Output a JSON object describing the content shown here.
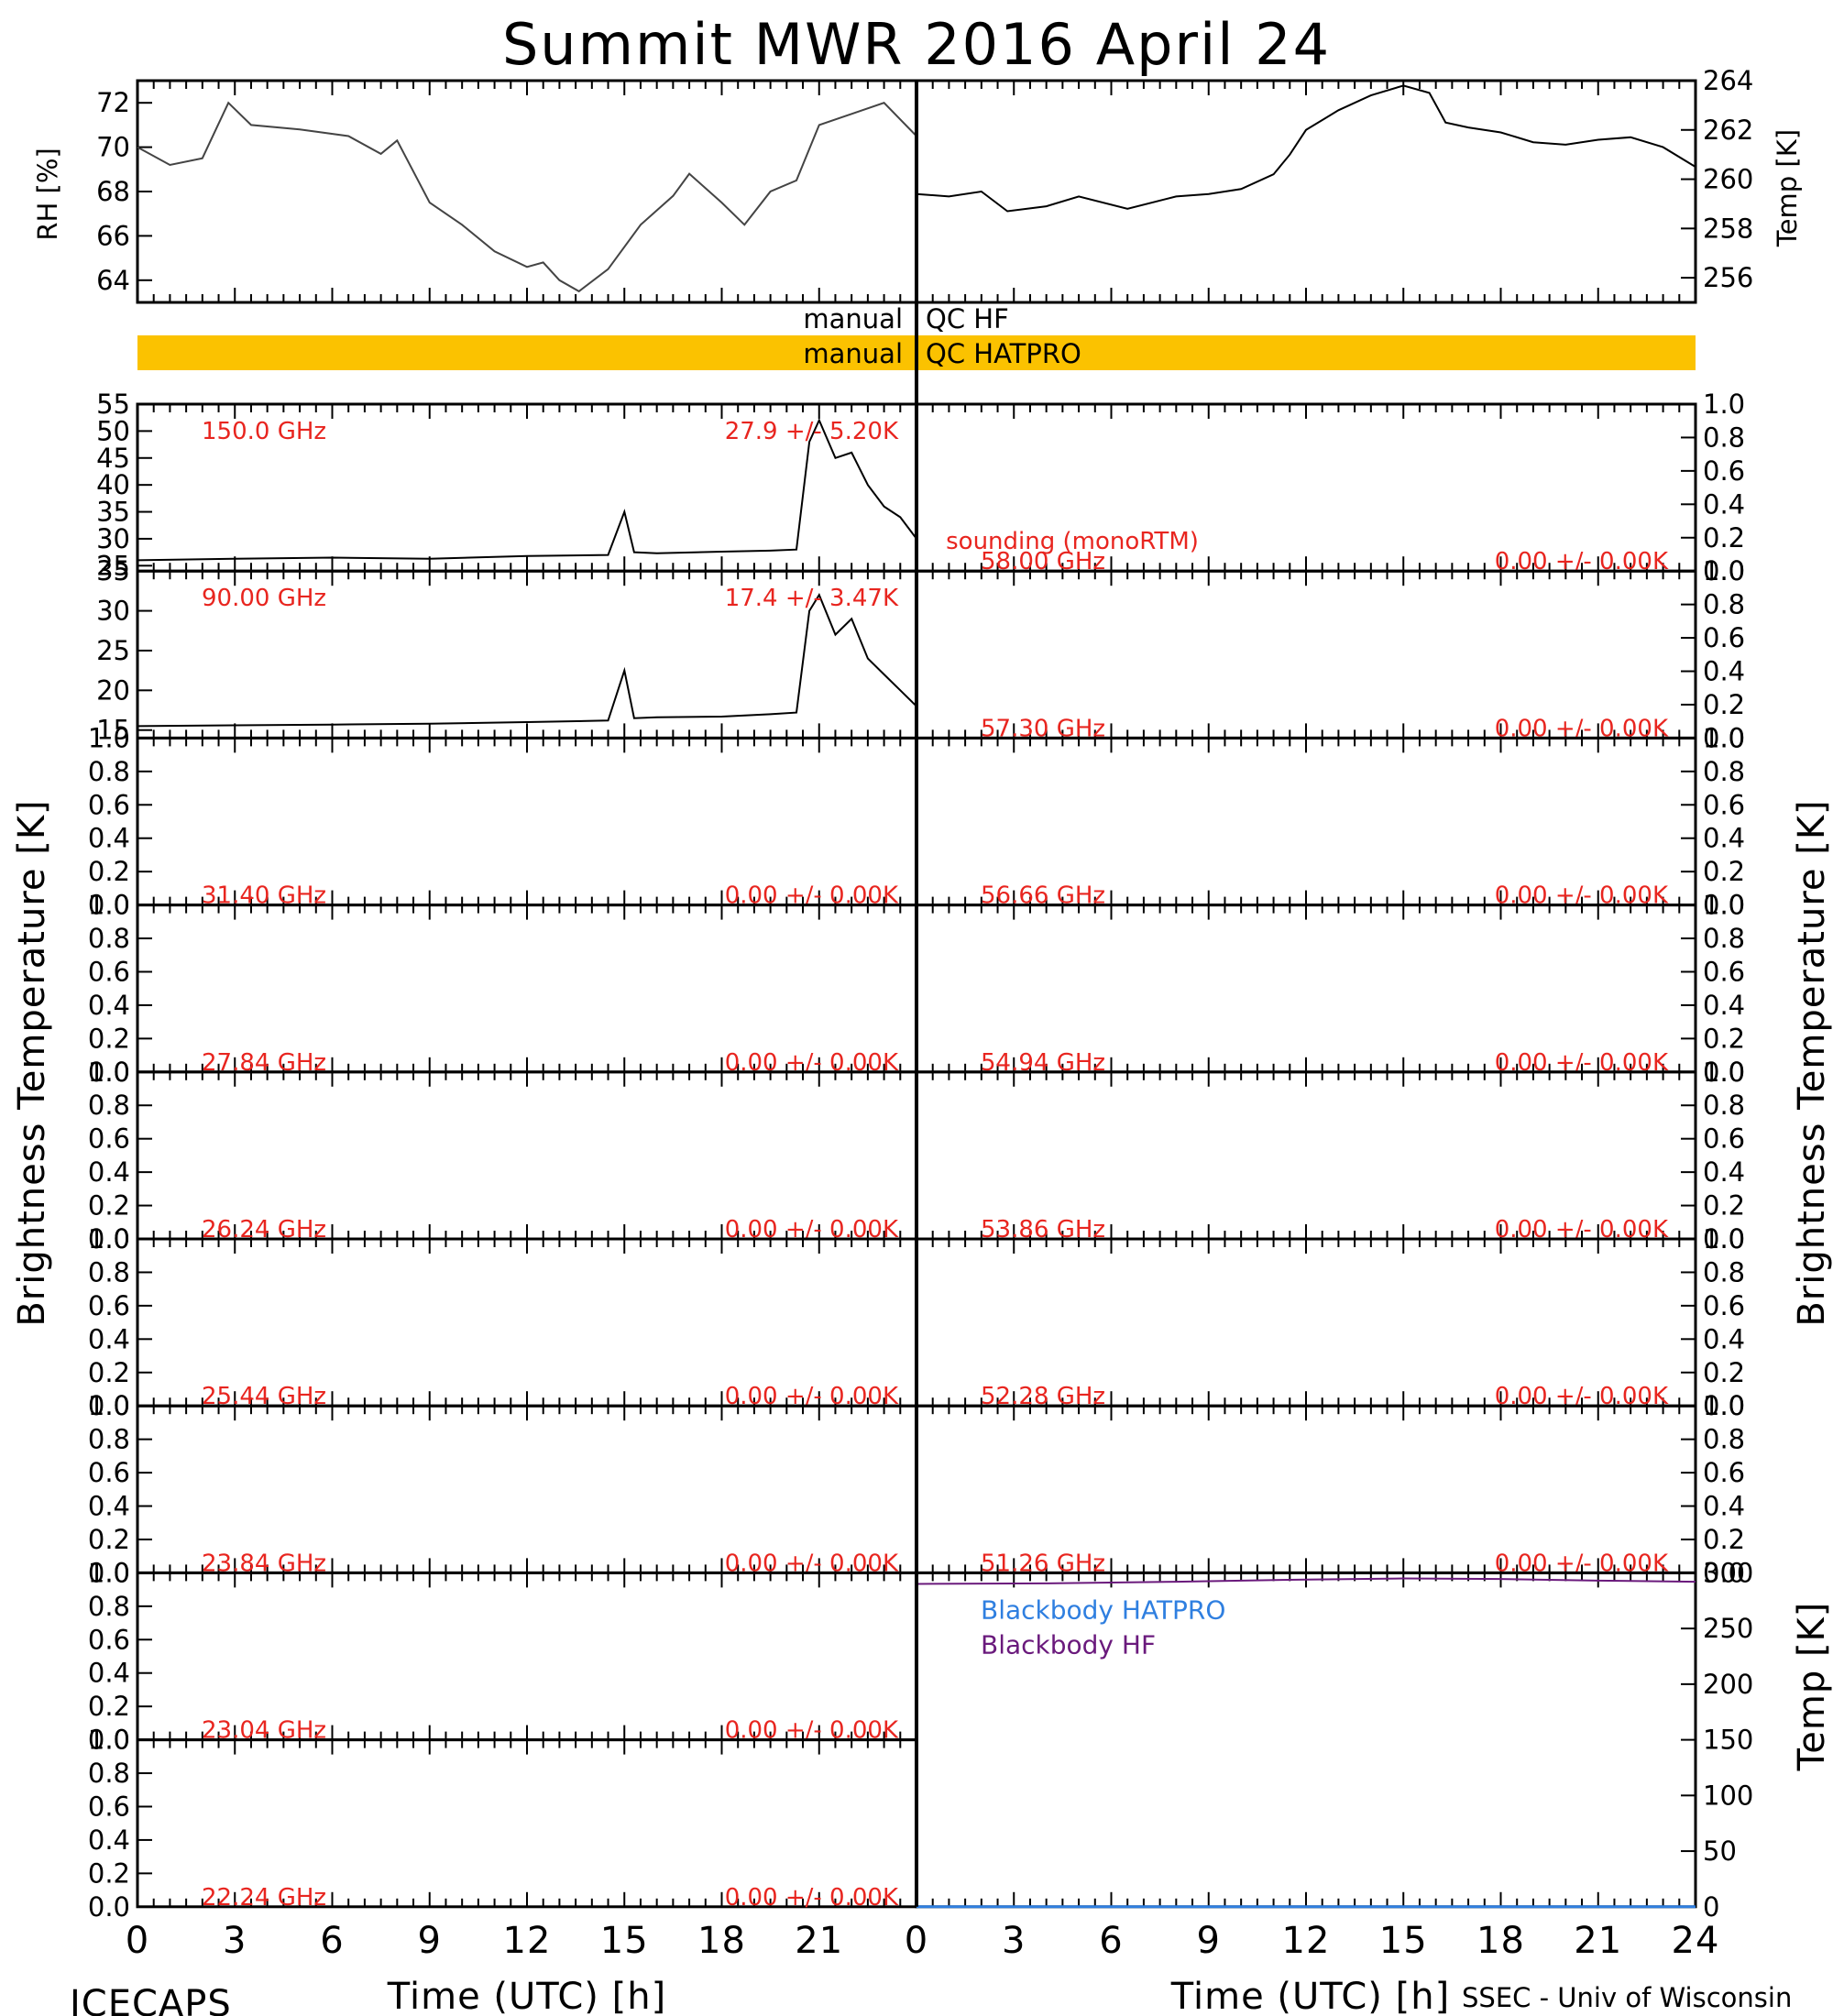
{
  "title": "Summit MWR 2016 April 24",
  "footer": {
    "left": "ICECAPS",
    "right": "SSEC - Univ of Wisconsin",
    "xlabel_left": "Time (UTC) [h]",
    "xlabel_right": "Time (UTC) [h]"
  },
  "colors": {
    "qc_bar": "#fbc200",
    "freq_label": "#e8251f",
    "sounding": "#2f7fe0",
    "blackbody_hatpro": "#2f7fe0",
    "blackbody_hf": "#6a1a7c",
    "line": "#000000"
  },
  "qc": {
    "hf_left": "manual",
    "hf_right": "QC HF",
    "hatpro_left": "manual",
    "hatpro_right": "QC HATPRO"
  },
  "axis_labels": {
    "bt_left": "Brightness Temperature [K]",
    "bt_right": "Brightness Temperature [K]",
    "rh": "RH [%]",
    "temp": "Temp [K]",
    "bb_temp": "Temp [K]"
  },
  "sounding_label": "sounding (monoRTM)",
  "left_channels": [
    {
      "freq": "150.0 GHz",
      "stat": "27.9 +/- 5.20K"
    },
    {
      "freq": "90.00 GHz",
      "stat": "17.4 +/- 3.47K"
    },
    {
      "freq": "31.40 GHz",
      "stat": "0.00 +/- 0.00K"
    },
    {
      "freq": "27.84 GHz",
      "stat": "0.00 +/- 0.00K"
    },
    {
      "freq": "26.24 GHz",
      "stat": "0.00 +/- 0.00K"
    },
    {
      "freq": "25.44 GHz",
      "stat": "0.00 +/- 0.00K"
    },
    {
      "freq": "23.84 GHz",
      "stat": "0.00 +/- 0.00K"
    },
    {
      "freq": "23.04 GHz",
      "stat": "0.00 +/- 0.00K"
    },
    {
      "freq": "22.24 GHz",
      "stat": "0.00 +/- 0.00K"
    }
  ],
  "right_channels": [
    {
      "freq": "58.00 GHz",
      "stat": "0.00 +/- 0.00K"
    },
    {
      "freq": "57.30 GHz",
      "stat": "0.00 +/- 0.00K"
    },
    {
      "freq": "56.66 GHz",
      "stat": "0.00 +/- 0.00K"
    },
    {
      "freq": "54.94 GHz",
      "stat": "0.00 +/- 0.00K"
    },
    {
      "freq": "53.86 GHz",
      "stat": "0.00 +/- 0.00K"
    },
    {
      "freq": "52.28 GHz",
      "stat": "0.00 +/- 0.00K"
    },
    {
      "freq": "51.26 GHz",
      "stat": "0.00 +/- 0.00K"
    }
  ],
  "blackbody_legend": [
    "Blackbody HATPRO",
    "Blackbody HF"
  ],
  "chart_data": [
    {
      "type": "line",
      "panel": "RH",
      "xlabel": "Time (UTC) [h]",
      "ylabel": "RH [%]",
      "xlim": [
        0,
        24
      ],
      "ylim": [
        63,
        73
      ],
      "yticks": [
        64,
        66,
        68,
        70,
        72
      ],
      "series": [
        {
          "x": [
            0,
            1,
            2,
            2.8,
            3.5,
            5,
            6.5,
            7.5,
            8,
            9,
            10,
            11,
            12,
            12.5,
            13,
            13.6,
            14.5,
            15.5,
            16.5,
            17,
            18,
            18.7,
            19.5,
            20.3,
            21,
            22,
            23,
            24
          ],
          "values": [
            70,
            69.2,
            69.5,
            72,
            71,
            70.8,
            70.5,
            69.7,
            70.3,
            67.5,
            66.5,
            65.3,
            64.6,
            64.8,
            64,
            63.5,
            64.5,
            66.5,
            67.8,
            68.8,
            67.5,
            66.5,
            68,
            68.5,
            71,
            71.5,
            72,
            70.5
          ]
        }
      ]
    },
    {
      "type": "line",
      "panel": "Temp",
      "xlabel": "Time (UTC) [h]",
      "ylabel": "Temp [K]",
      "xlim": [
        0,
        24
      ],
      "ylim": [
        255,
        264
      ],
      "yticks": [
        256,
        258,
        260,
        262,
        264
      ],
      "series": [
        {
          "x": [
            0,
            1,
            2,
            2.8,
            4,
            5,
            6.5,
            8,
            9,
            10,
            11,
            11.5,
            12,
            13,
            14,
            15,
            15.8,
            16.3,
            17,
            18,
            19,
            20,
            21,
            22,
            23,
            24
          ],
          "values": [
            259.4,
            259.3,
            259.5,
            258.7,
            258.9,
            259.3,
            258.8,
            259.3,
            259.4,
            259.6,
            260.2,
            261,
            262,
            262.8,
            263.4,
            263.8,
            263.5,
            262.3,
            262.1,
            261.9,
            261.5,
            261.4,
            261.6,
            261.7,
            261.3,
            260.5
          ]
        }
      ]
    },
    {
      "type": "line",
      "panel": "150.0 GHz",
      "xlabel": "Time (UTC) [h]",
      "ylabel": "Brightness Temperature [K]",
      "xlim": [
        0,
        24
      ],
      "ylim": [
        24,
        55
      ],
      "yticks": [
        25,
        30,
        35,
        40,
        45,
        50,
        55
      ],
      "series": [
        {
          "x": [
            0,
            3,
            6,
            9,
            12,
            14.5,
            15,
            15.3,
            16,
            18,
            19.5,
            20.3,
            20.7,
            21,
            21.5,
            22,
            22.5,
            23,
            23.5,
            24
          ],
          "values": [
            26,
            26.3,
            26.5,
            26.3,
            26.8,
            27,
            35,
            27.5,
            27.3,
            27.6,
            27.8,
            28,
            48,
            52,
            45,
            46,
            40,
            36,
            34,
            30
          ]
        }
      ]
    },
    {
      "type": "line",
      "panel": "90.00 GHz",
      "xlabel": "Time (UTC) [h]",
      "ylabel": "Brightness Temperature [K]",
      "xlim": [
        0,
        24
      ],
      "ylim": [
        14,
        35
      ],
      "yticks": [
        15,
        20,
        25,
        30,
        35
      ],
      "series": [
        {
          "x": [
            0,
            3,
            6,
            9,
            12,
            14.5,
            15,
            15.3,
            16,
            18,
            19.5,
            20.3,
            20.7,
            21,
            21.5,
            22,
            22.5,
            23,
            23.5,
            24
          ],
          "values": [
            15.5,
            15.6,
            15.7,
            15.8,
            16,
            16.2,
            22.5,
            16.5,
            16.6,
            16.7,
            17,
            17.2,
            30,
            32,
            27,
            29,
            24,
            22,
            20,
            18
          ]
        }
      ]
    },
    {
      "type": "line",
      "panel": "Blackbody",
      "xlabel": "Time (UTC) [h]",
      "ylabel": "Temp [K]",
      "xlim": [
        0,
        24
      ],
      "ylim": [
        0,
        300
      ],
      "yticks": [
        0,
        50,
        100,
        150,
        200,
        250,
        300
      ],
      "series": [
        {
          "name": "Blackbody HATPRO",
          "x": [
            0,
            24
          ],
          "values": [
            0,
            0
          ]
        },
        {
          "name": "Blackbody HF",
          "x": [
            0,
            4,
            8,
            12,
            15,
            18,
            21,
            24
          ],
          "values": [
            290,
            290.5,
            292,
            294,
            295,
            294.5,
            293,
            292
          ]
        }
      ]
    }
  ]
}
